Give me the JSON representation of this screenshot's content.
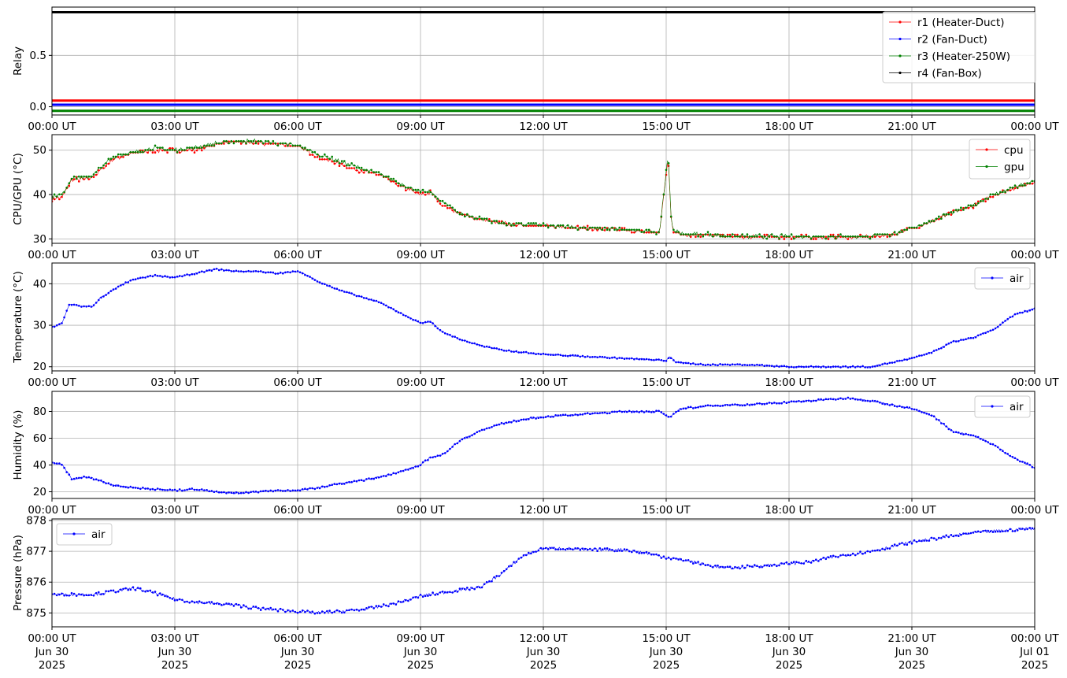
{
  "x_ticks": {
    "times": [
      "00:00 UT",
      "03:00 UT",
      "06:00 UT",
      "09:00 UT",
      "12:00 UT",
      "15:00 UT",
      "18:00 UT",
      "21:00 UT",
      "00:00 UT"
    ],
    "dates": [
      "Jun 30",
      "Jun 30",
      "Jun 30",
      "Jun 30",
      "Jun 30",
      "Jun 30",
      "Jun 30",
      "Jun 30",
      "Jul 01"
    ],
    "years": [
      "2025",
      "2025",
      "2025",
      "2025",
      "2025",
      "2025",
      "2025",
      "2025",
      "2025"
    ]
  },
  "x_range": [
    "2025-06-30 00:00",
    "2025-07-01 00:00"
  ],
  "chart_data": [
    {
      "type": "line",
      "ylabel": "Relay",
      "ylim": [
        -0.08,
        0.97
      ],
      "yticks": [
        "0.0",
        "0.5"
      ],
      "yticks_values": [
        0.0,
        0.5
      ],
      "legend_loc": "upper right",
      "series": [
        {
          "name": "r1 (Heater-Duct)",
          "color": "#ff0000",
          "x": [
            "00:00",
            "24:00"
          ],
          "y": [
            0.06,
            0.06
          ]
        },
        {
          "name": "r2 (Fan-Duct)",
          "color": "#0000ff",
          "x": [
            "00:00",
            "24:00"
          ],
          "y": [
            0.02,
            0.02
          ]
        },
        {
          "name": "r3 (Heater-250W)",
          "color": "#008000",
          "x": [
            "00:00",
            "24:00"
          ],
          "y": [
            -0.04,
            -0.04
          ]
        },
        {
          "name": "r4 (Fan-Box)",
          "color": "#000000",
          "x": [
            "00:00",
            "24:00"
          ],
          "y": [
            0.92,
            0.92
          ]
        }
      ]
    },
    {
      "type": "line",
      "ylabel": "CPU/GPU (°C)",
      "ylim": [
        29,
        53.5
      ],
      "yticks": [
        "30",
        "40",
        "50"
      ],
      "yticks_values": [
        30,
        40,
        50
      ],
      "legend_loc": "upper right",
      "series": [
        {
          "name": "cpu",
          "color": "#ff0000",
          "x": [
            "00:00",
            "00:15",
            "00:30",
            "00:45",
            "01:00",
            "01:30",
            "02:00",
            "02:30",
            "03:00",
            "03:30",
            "04:00",
            "04:30",
            "05:00",
            "05:30",
            "06:00",
            "06:30",
            "07:00",
            "07:30",
            "08:00",
            "08:30",
            "09:00",
            "09:15",
            "09:30",
            "10:00",
            "10:30",
            "11:00",
            "12:00",
            "13:00",
            "14:00",
            "14:50",
            "15:03",
            "15:07",
            "15:10",
            "15:15",
            "15:30",
            "16:00",
            "17:00",
            "18:00",
            "19:00",
            "20:00",
            "20:30",
            "21:00",
            "21:30",
            "22:00",
            "22:30",
            "23:00",
            "23:30",
            "24:00"
          ],
          "y": [
            39,
            39.5,
            43.5,
            43.5,
            44,
            48,
            49.5,
            50,
            50,
            50,
            51.5,
            52,
            51.5,
            51.5,
            51,
            48.5,
            47,
            45.5,
            44.5,
            42,
            40,
            40.5,
            38,
            35.5,
            34.5,
            33.5,
            33,
            32.5,
            32,
            31.5,
            48.5,
            35,
            32,
            31.5,
            31,
            31,
            30.5,
            30.5,
            30.5,
            30.5,
            31,
            32.5,
            34,
            36,
            37.5,
            40,
            41.5,
            43
          ]
        },
        {
          "name": "gpu",
          "color": "#008000",
          "x": [
            "00:00",
            "00:15",
            "00:30",
            "00:45",
            "01:00",
            "01:30",
            "02:00",
            "02:30",
            "03:00",
            "03:30",
            "04:00",
            "04:30",
            "05:00",
            "05:30",
            "06:00",
            "06:30",
            "07:00",
            "07:30",
            "08:00",
            "08:30",
            "09:00",
            "09:15",
            "09:30",
            "10:00",
            "10:30",
            "11:00",
            "12:00",
            "13:00",
            "14:00",
            "14:50",
            "15:03",
            "15:07",
            "15:10",
            "15:15",
            "15:30",
            "16:00",
            "17:00",
            "18:00",
            "19:00",
            "20:00",
            "20:30",
            "21:00",
            "21:30",
            "22:00",
            "22:30",
            "23:00",
            "23:30",
            "24:00"
          ],
          "y": [
            39.5,
            40,
            44,
            43.5,
            44.5,
            48.5,
            49.5,
            50.5,
            50,
            50.5,
            51.5,
            52,
            52,
            51.5,
            51,
            49,
            47.5,
            46,
            44.5,
            42.5,
            40.5,
            40.5,
            38.5,
            35.5,
            34.5,
            33.5,
            33,
            32.5,
            32,
            31.5,
            49,
            35.5,
            32,
            31.5,
            31,
            31,
            30.5,
            30.5,
            30.5,
            30.5,
            31,
            32.5,
            34,
            36,
            37.5,
            40,
            41.5,
            43
          ]
        }
      ]
    },
    {
      "type": "line",
      "ylabel": "Temperature (°C)",
      "ylim": [
        19,
        45
      ],
      "yticks": [
        "20",
        "30",
        "40"
      ],
      "yticks_values": [
        20,
        30,
        40
      ],
      "legend_loc": "upper right",
      "series": [
        {
          "name": "air",
          "color": "#0000ff",
          "x": [
            "00:00",
            "00:15",
            "00:25",
            "00:30",
            "00:45",
            "01:00",
            "01:10",
            "01:30",
            "01:45",
            "02:00",
            "02:30",
            "03:00",
            "03:30",
            "04:00",
            "04:30",
            "05:00",
            "05:30",
            "06:00",
            "06:15",
            "06:30",
            "07:00",
            "07:30",
            "08:00",
            "08:30",
            "09:00",
            "09:15",
            "09:30",
            "10:00",
            "10:30",
            "11:00",
            "12:00",
            "13:00",
            "14:00",
            "15:00",
            "15:05",
            "15:15",
            "16:00",
            "17:00",
            "18:00",
            "19:00",
            "20:00",
            "20:30",
            "21:00",
            "21:30",
            "22:00",
            "22:30",
            "23:00",
            "23:30",
            "24:00"
          ],
          "y": [
            29.5,
            30.5,
            35,
            35,
            34.5,
            34.5,
            36.5,
            38.5,
            40,
            41,
            42,
            41.5,
            42.5,
            43.5,
            43,
            43,
            42.5,
            43,
            42,
            40.5,
            38.5,
            37,
            35.5,
            33,
            30.5,
            31,
            28.5,
            26.5,
            25,
            24,
            23,
            22.5,
            22,
            21.5,
            22.5,
            21,
            20.5,
            20.5,
            20,
            20,
            20,
            21,
            22,
            23.5,
            26,
            27,
            29,
            32.5,
            34
          ]
        }
      ]
    },
    {
      "type": "line",
      "ylabel": "Humidity (%)",
      "ylim": [
        15,
        95
      ],
      "yticks": [
        "20",
        "40",
        "60",
        "80"
      ],
      "yticks_values": [
        20,
        40,
        60,
        80
      ],
      "legend_loc": "upper right",
      "series": [
        {
          "name": "air",
          "color": "#0000ff",
          "x": [
            "00:00",
            "00:15",
            "00:30",
            "00:45",
            "01:00",
            "01:30",
            "02:00",
            "02:30",
            "03:00",
            "03:30",
            "04:00",
            "04:30",
            "05:00",
            "05:30",
            "06:00",
            "06:30",
            "07:00",
            "07:30",
            "08:00",
            "08:30",
            "09:00",
            "09:15",
            "09:30",
            "10:00",
            "10:30",
            "11:00",
            "11:30",
            "12:00",
            "13:00",
            "14:00",
            "14:50",
            "15:05",
            "15:20",
            "16:00",
            "16:30",
            "17:00",
            "18:00",
            "19:00",
            "19:30",
            "20:00",
            "20:30",
            "21:00",
            "21:30",
            "22:00",
            "22:30",
            "23:00",
            "23:30",
            "24:00"
          ],
          "y": [
            42,
            40,
            29,
            31,
            30,
            25,
            23,
            22,
            21,
            22,
            20,
            19,
            20,
            21,
            21,
            23,
            26,
            28,
            31,
            35,
            40,
            46,
            47,
            59,
            66,
            71,
            74,
            76,
            78,
            80,
            80,
            75,
            82,
            84,
            85,
            85,
            87,
            89,
            90,
            88,
            85,
            82,
            77,
            65,
            62,
            55,
            45,
            38
          ]
        }
      ]
    },
    {
      "type": "line",
      "ylabel": "Pressure (hPa)",
      "ylim": [
        874.55,
        878.05
      ],
      "yticks": [
        "875",
        "876",
        "877",
        "878"
      ],
      "yticks_values": [
        875,
        876,
        877,
        878
      ],
      "legend_loc": "upper left",
      "series": [
        {
          "name": "air",
          "color": "#0000ff",
          "x": [
            "00:00",
            "00:30",
            "01:00",
            "01:30",
            "02:00",
            "02:30",
            "03:00",
            "03:30",
            "04:00",
            "04:30",
            "05:00",
            "05:30",
            "06:00",
            "06:30",
            "07:00",
            "07:30",
            "08:00",
            "08:30",
            "09:00",
            "09:30",
            "10:00",
            "10:30",
            "11:00",
            "11:30",
            "12:00",
            "12:30",
            "13:00",
            "13:30",
            "14:00",
            "14:30",
            "15:00",
            "15:30",
            "16:00",
            "16:30",
            "17:00",
            "17:30",
            "18:00",
            "18:30",
            "19:00",
            "19:30",
            "20:00",
            "20:30",
            "21:00",
            "21:30",
            "22:00",
            "22:30",
            "23:00",
            "23:30",
            "24:00"
          ],
          "y": [
            875.6,
            875.6,
            875.6,
            875.7,
            875.8,
            875.65,
            875.45,
            875.35,
            875.3,
            875.25,
            875.15,
            875.1,
            875.05,
            875.0,
            875.05,
            875.1,
            875.2,
            875.35,
            875.55,
            875.65,
            875.75,
            875.85,
            876.3,
            876.85,
            877.1,
            877.1,
            877.05,
            877.05,
            877.05,
            876.95,
            876.8,
            876.7,
            876.55,
            876.45,
            876.5,
            876.55,
            876.6,
            876.65,
            876.8,
            876.9,
            877.0,
            877.15,
            877.3,
            877.4,
            877.5,
            877.6,
            877.65,
            877.7,
            877.75
          ]
        }
      ]
    }
  ]
}
